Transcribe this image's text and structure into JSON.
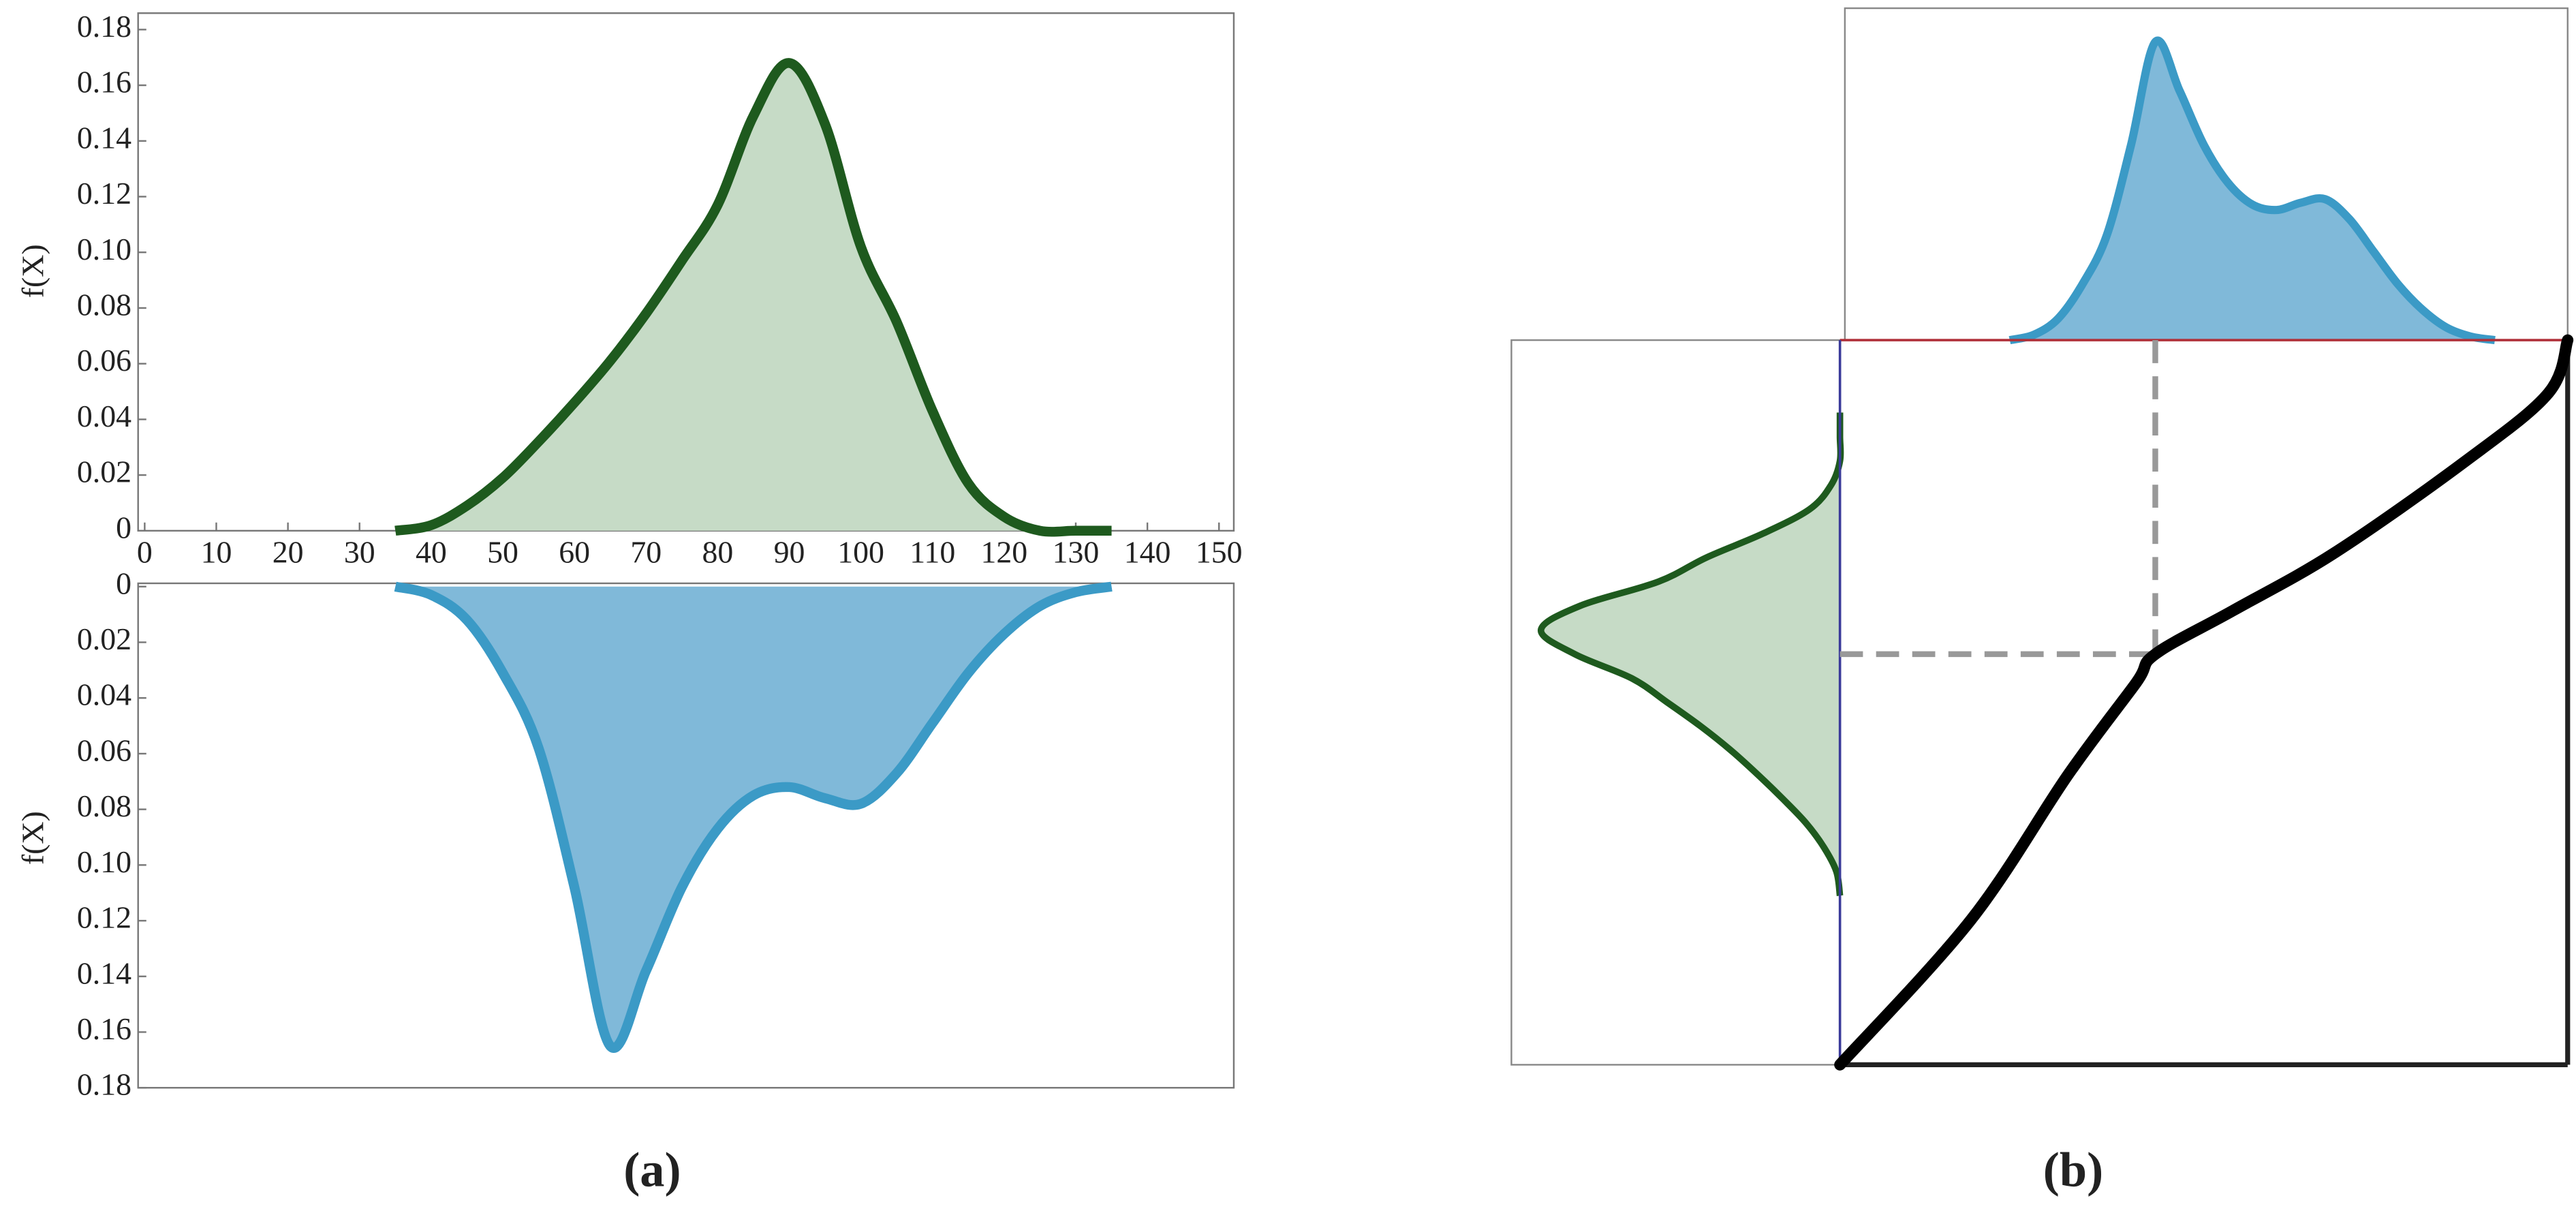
{
  "chart_data": [
    {
      "type": "area",
      "ylabel": "f(X)",
      "x": [
        35,
        40,
        45,
        50,
        55,
        60,
        65,
        70,
        75,
        80,
        85,
        90,
        95,
        100,
        105,
        110,
        115,
        120,
        125,
        130,
        135
      ],
      "values": [
        0,
        0.002,
        0.009,
        0.019,
        0.032,
        0.046,
        0.061,
        0.078,
        0.097,
        0.117,
        0.149,
        0.168,
        0.146,
        0.102,
        0.075,
        0.043,
        0.017,
        0.005,
        0,
        0,
        0
      ],
      "color": "#1e5a1e",
      "fill_color": "#c6dbc6",
      "xlim": [
        0,
        150
      ],
      "ylim": [
        0,
        0.18
      ],
      "xticks": [
        0,
        10,
        20,
        30,
        40,
        50,
        60,
        70,
        80,
        90,
        100,
        110,
        120,
        130,
        140,
        150
      ],
      "yticks": [
        0,
        0.02,
        0.04,
        0.06,
        0.08,
        {
          "value": 0.1,
          "label": "0.10"
        },
        0.12,
        0.14,
        0.16,
        0.18
      ]
    },
    {
      "type": "area",
      "ylabel": "f(X)",
      "caption": "(a)",
      "x": [
        35,
        40,
        45,
        50,
        55,
        60,
        65,
        70,
        75,
        80,
        85,
        90,
        95,
        100,
        105,
        110,
        115,
        120,
        125,
        130,
        135
      ],
      "values": [
        0,
        0.003,
        0.012,
        0.031,
        0.058,
        0.108,
        0.165,
        0.138,
        0.108,
        0.087,
        0.075,
        0.072,
        0.076,
        0.078,
        0.067,
        0.049,
        0.031,
        0.017,
        0.007,
        0.002,
        0
      ],
      "color": "#3b9ac6",
      "fill_color": "#80b9d9",
      "xlim": [
        0,
        150
      ],
      "ylim": [
        0.18,
        0
      ],
      "yticks": [
        0,
        0.02,
        0.04,
        0.06,
        0.08,
        {
          "value": 0.1,
          "label": "0.10"
        },
        0.12,
        0.14,
        0.16,
        0.18
      ]
    },
    {
      "type": "quantile-map",
      "caption": "(b)",
      "x": [
        0,
        27,
        47,
        61,
        65,
        81,
        102,
        129,
        146,
        150
      ],
      "values": [
        0,
        30,
        60,
        79,
        85,
        94,
        106,
        125,
        139,
        150
      ],
      "point": [
        65,
        85
      ],
      "color": "#000000",
      "xlim": [
        0,
        150
      ],
      "ylim": [
        0,
        150
      ]
    }
  ]
}
